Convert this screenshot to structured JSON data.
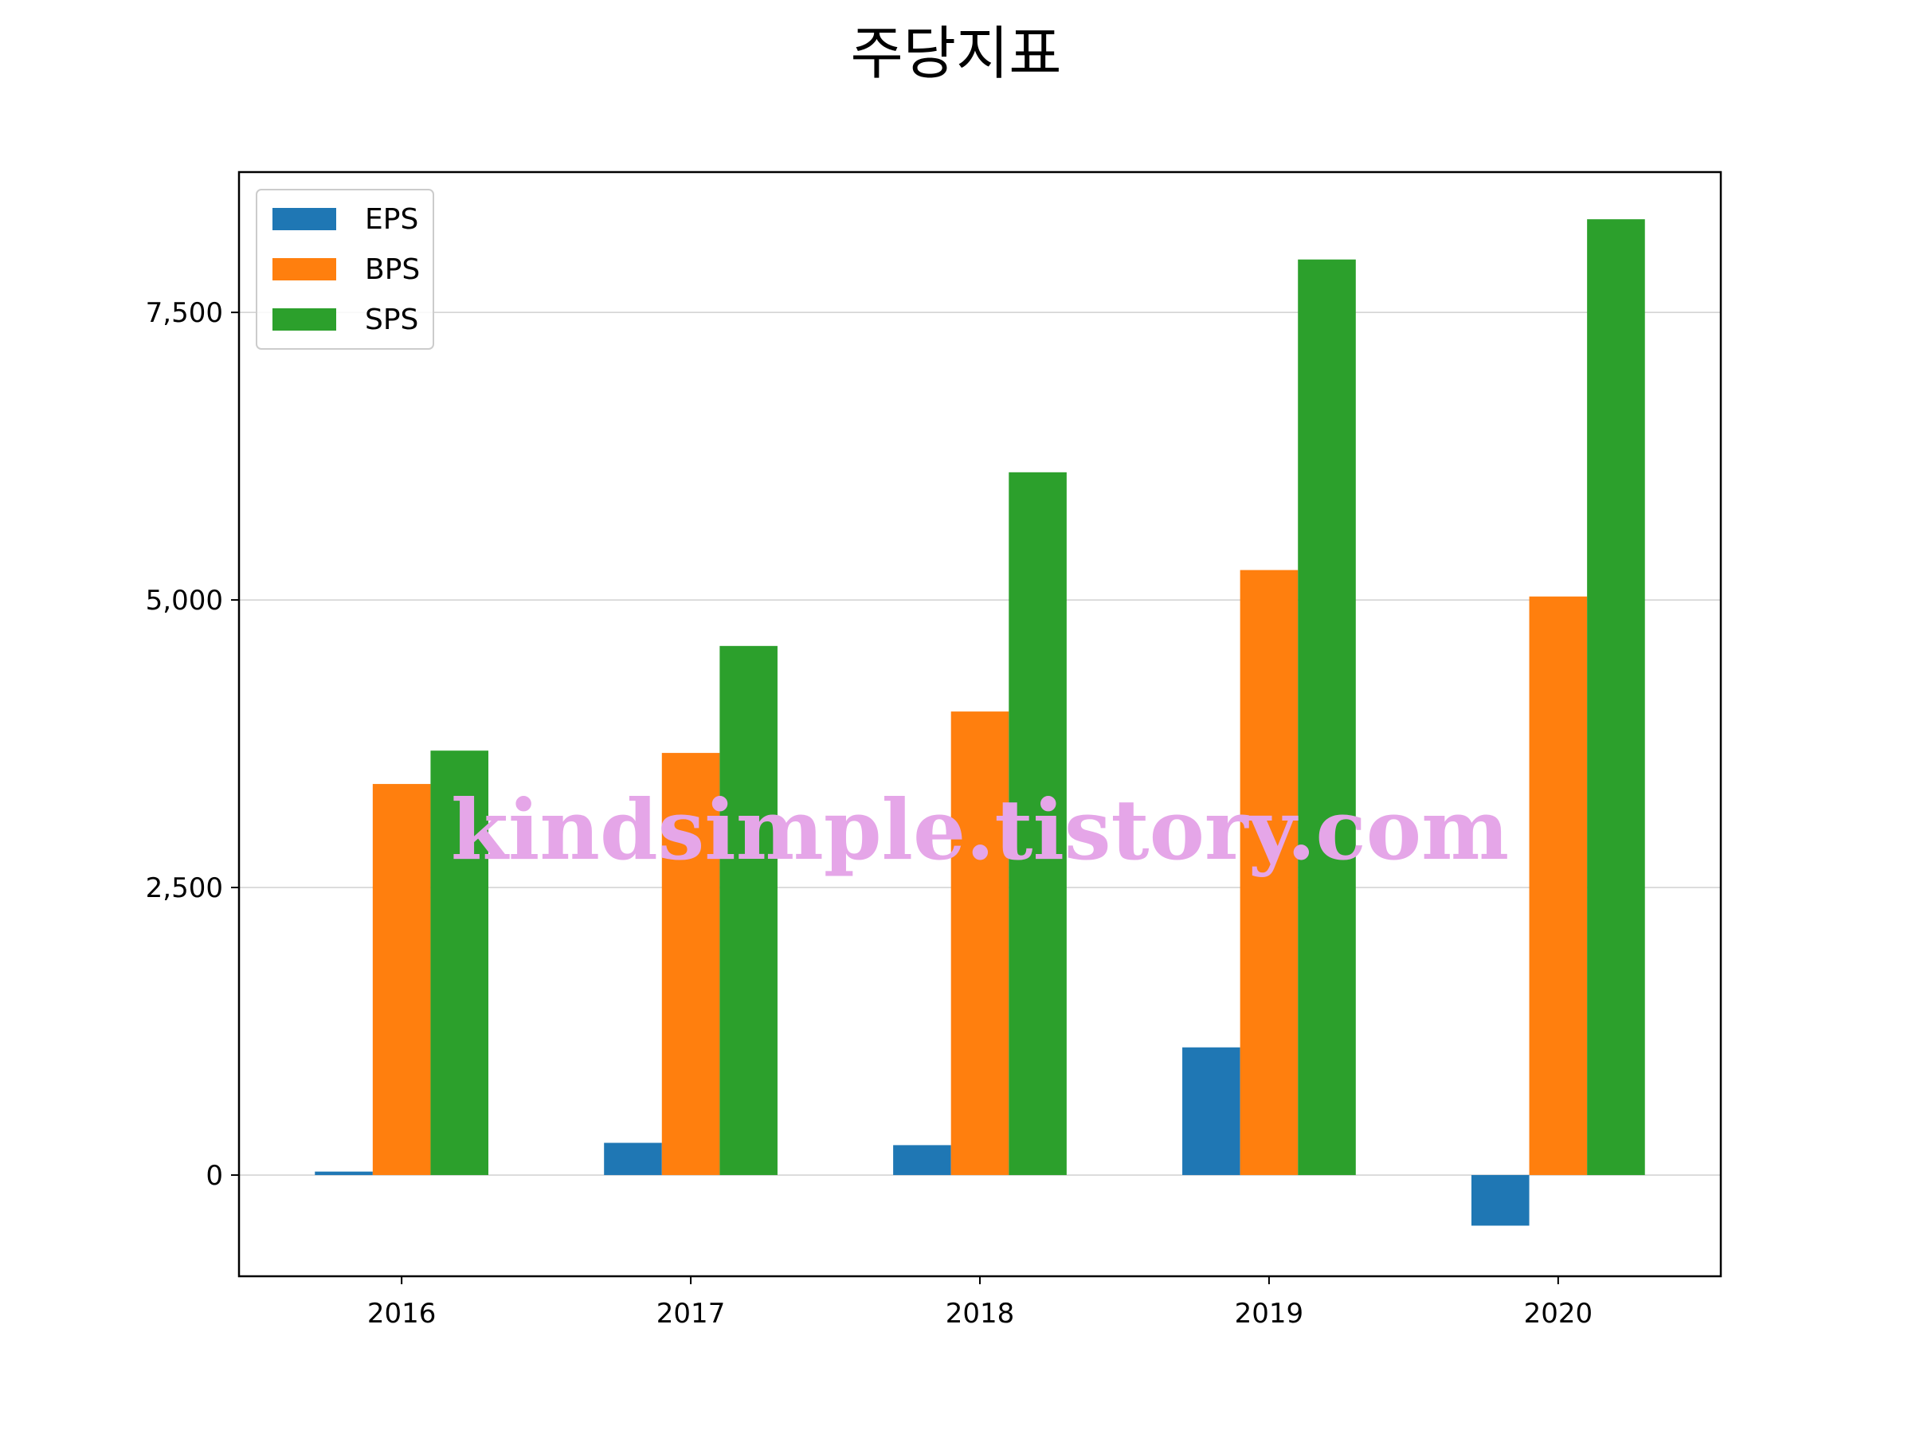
{
  "chart_data": {
    "type": "bar",
    "title": "주당지표",
    "xlabel": "",
    "ylabel": "",
    "categories": [
      "2016",
      "2017",
      "2018",
      "2019",
      "2020"
    ],
    "series": [
      {
        "name": "EPS",
        "color": "#1f77b4",
        "values": [
          30,
          280,
          260,
          1110,
          -440
        ]
      },
      {
        "name": "BPS",
        "color": "#ff7f0e",
        "values": [
          3400,
          3670,
          4030,
          5260,
          5030
        ]
      },
      {
        "name": "SPS",
        "color": "#2ca02c",
        "values": [
          3690,
          4600,
          6110,
          7960,
          8310
        ]
      }
    ],
    "yticks": [
      0,
      2500,
      5000,
      7500
    ],
    "ytick_labels": [
      "0",
      "2,500",
      "5,000",
      "7,500"
    ],
    "ylim": [
      -880,
      8720
    ],
    "grid": "y",
    "legend_position": "top-left",
    "watermark": "kindsimple.tistory.com"
  }
}
